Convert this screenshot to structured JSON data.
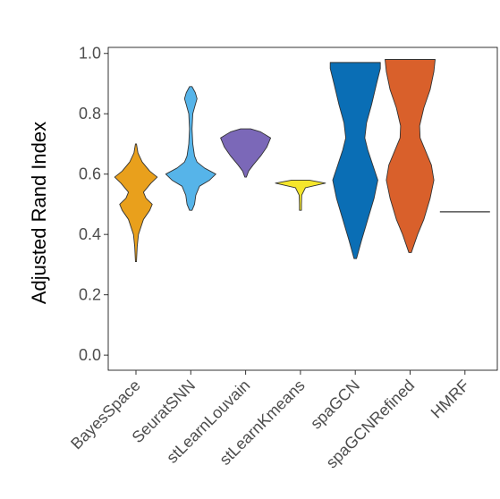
{
  "chart_data": {
    "type": "violin",
    "title": "",
    "xlabel": "",
    "ylabel": "Adjusted Rand Index",
    "ylim": [
      -0.05,
      1.02
    ],
    "yticks": [
      "0.0",
      "0.2",
      "0.4",
      "0.6",
      "0.8",
      "1.0"
    ],
    "ytick_values": [
      0.0,
      0.2,
      0.4,
      0.6,
      0.8,
      1.0
    ],
    "grid": false,
    "legend": "none",
    "categories": [
      "BayesSpace",
      "SeuratSNN",
      "stLearnLouvain",
      "stLearnKmeans",
      "spaGCN",
      "spaGCNRefined",
      "HMRF"
    ],
    "series": [
      {
        "category": "BayesSpace",
        "color": "#E9A01C",
        "min": 0.31,
        "max": 0.7,
        "density": [
          [
            0.31,
            0.02
          ],
          [
            0.36,
            0.05
          ],
          [
            0.4,
            0.1
          ],
          [
            0.45,
            0.3
          ],
          [
            0.48,
            0.55
          ],
          [
            0.5,
            0.65
          ],
          [
            0.52,
            0.4
          ],
          [
            0.54,
            0.3
          ],
          [
            0.57,
            0.6
          ],
          [
            0.59,
            0.85
          ],
          [
            0.61,
            0.55
          ],
          [
            0.64,
            0.25
          ],
          [
            0.67,
            0.08
          ],
          [
            0.7,
            0.02
          ]
        ]
      },
      {
        "category": "SeuratSNN",
        "color": "#56B4E9",
        "min": 0.48,
        "max": 0.89,
        "density": [
          [
            0.48,
            0.05
          ],
          [
            0.5,
            0.15
          ],
          [
            0.53,
            0.2
          ],
          [
            0.56,
            0.35
          ],
          [
            0.58,
            0.75
          ],
          [
            0.6,
            1.0
          ],
          [
            0.62,
            0.55
          ],
          [
            0.64,
            0.25
          ],
          [
            0.66,
            0.15
          ],
          [
            0.7,
            0.08
          ],
          [
            0.75,
            0.05
          ],
          [
            0.8,
            0.08
          ],
          [
            0.83,
            0.18
          ],
          [
            0.85,
            0.25
          ],
          [
            0.87,
            0.18
          ],
          [
            0.89,
            0.05
          ]
        ]
      },
      {
        "category": "stLearnLouvain",
        "color": "#7B68B8",
        "min": 0.59,
        "max": 0.75,
        "density": [
          [
            0.59,
            0.03
          ],
          [
            0.61,
            0.12
          ],
          [
            0.63,
            0.3
          ],
          [
            0.66,
            0.6
          ],
          [
            0.69,
            0.85
          ],
          [
            0.72,
            1.0
          ],
          [
            0.74,
            0.6
          ],
          [
            0.75,
            0.2
          ]
        ]
      },
      {
        "category": "stLearnKmeans",
        "color": "#F5E62C",
        "min": 0.48,
        "max": 0.58,
        "density": [
          [
            0.48,
            0.04
          ],
          [
            0.5,
            0.04
          ],
          [
            0.53,
            0.05
          ],
          [
            0.555,
            0.2
          ],
          [
            0.57,
            1.0
          ],
          [
            0.58,
            0.35
          ]
        ]
      },
      {
        "category": "spaGCN",
        "color": "#0A6EB5",
        "min": 0.32,
        "max": 0.97,
        "density": [
          [
            0.32,
            0.05
          ],
          [
            0.38,
            0.25
          ],
          [
            0.45,
            0.5
          ],
          [
            0.52,
            0.75
          ],
          [
            0.58,
            0.9
          ],
          [
            0.63,
            0.7
          ],
          [
            0.68,
            0.5
          ],
          [
            0.72,
            0.38
          ],
          [
            0.77,
            0.45
          ],
          [
            0.83,
            0.65
          ],
          [
            0.9,
            0.85
          ],
          [
            0.95,
            1.0
          ],
          [
            0.97,
            1.0
          ]
        ]
      },
      {
        "category": "spaGCNRefined",
        "color": "#D9602B",
        "min": 0.34,
        "max": 0.98,
        "density": [
          [
            0.34,
            0.05
          ],
          [
            0.4,
            0.3
          ],
          [
            0.45,
            0.55
          ],
          [
            0.52,
            0.8
          ],
          [
            0.58,
            0.95
          ],
          [
            0.63,
            0.85
          ],
          [
            0.68,
            0.6
          ],
          [
            0.72,
            0.4
          ],
          [
            0.76,
            0.38
          ],
          [
            0.82,
            0.55
          ],
          [
            0.88,
            0.8
          ],
          [
            0.94,
            0.95
          ],
          [
            0.98,
            1.0
          ]
        ]
      },
      {
        "category": "HMRF",
        "color": "#999999",
        "min": 0.475,
        "max": 0.475,
        "density": [
          [
            0.475,
            1.0
          ]
        ]
      }
    ]
  }
}
